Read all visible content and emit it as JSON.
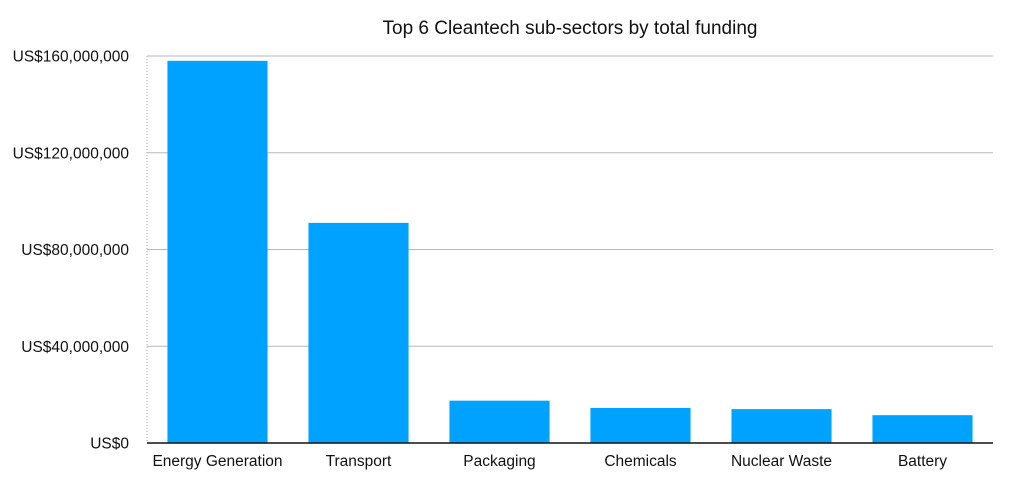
{
  "chart_data": {
    "type": "bar",
    "title": "Top 6 Cleantech sub-sectors by total funding",
    "xlabel": "",
    "ylabel": "",
    "categories": [
      "Energy Generation",
      "Transport",
      "Packaging",
      "Chemicals",
      "Nuclear Waste",
      "Battery"
    ],
    "values": [
      158000000,
      91000000,
      17500000,
      14500000,
      14000000,
      11500000
    ],
    "ylim": [
      0,
      160000000
    ],
    "yticks": [
      0,
      40000000,
      80000000,
      120000000,
      160000000
    ],
    "ytick_labels": [
      "US$0",
      "US$40,000,000",
      "US$80,000,000",
      "US$120,000,000",
      "US$160,000,000"
    ],
    "grid": true,
    "bar_color": "#00a2ff",
    "legend": "none"
  }
}
